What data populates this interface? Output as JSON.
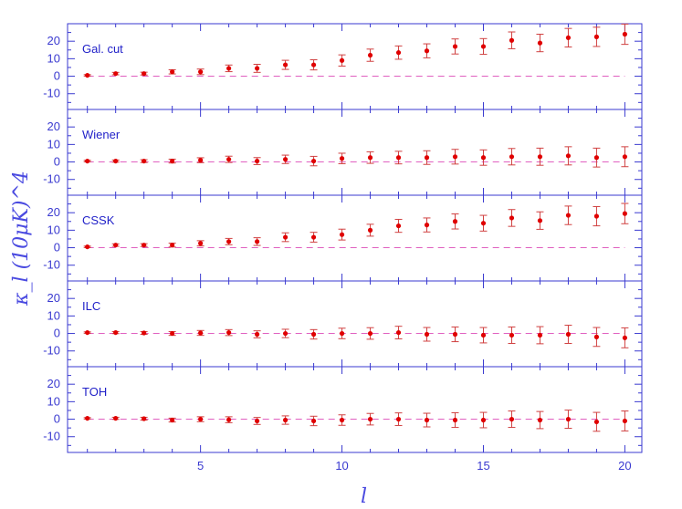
{
  "chart_data": {
    "type": "scatter",
    "xlabel": "l",
    "ylabel": "κ_l (10μK)^4",
    "xlim": [
      0.3,
      20.6
    ],
    "ylim": [
      -19,
      30
    ],
    "x_ticks": [
      5,
      10,
      15,
      20
    ],
    "y_ticks": [
      -10,
      0,
      10,
      20
    ],
    "colors": {
      "axis": "#3a3ad0",
      "points": "#e00000",
      "errorbars": "#d04040",
      "reference_line": "#e060c0"
    },
    "x": [
      1,
      2,
      3,
      4,
      5,
      6,
      7,
      8,
      9,
      10,
      11,
      12,
      13,
      14,
      15,
      16,
      17,
      18,
      19,
      20
    ],
    "panels": [
      {
        "label": "Gal. cut",
        "y": [
          0.5,
          1.5,
          1.5,
          2.5,
          2.5,
          4.5,
          4.5,
          6.5,
          6.5,
          9,
          12,
          13.5,
          14.5,
          17,
          17,
          20.5,
          19,
          22,
          22.5,
          24
        ],
        "err": [
          0.4,
          0.7,
          0.8,
          1.2,
          1.6,
          1.9,
          2.3,
          2.6,
          2.9,
          3.2,
          3.5,
          3.8,
          4.0,
          4.3,
          4.5,
          4.8,
          5.0,
          5.3,
          5.5,
          5.8
        ]
      },
      {
        "label": "Wiener",
        "y": [
          0.5,
          0.5,
          0.5,
          0.5,
          1,
          1.5,
          0.5,
          1.5,
          0.5,
          2,
          2.5,
          2.5,
          2.5,
          3,
          2.5,
          3,
          3,
          3.5,
          2.5,
          3
        ],
        "err": [
          0.4,
          0.6,
          0.8,
          1.1,
          1.4,
          1.8,
          2.0,
          2.4,
          2.7,
          3.0,
          3.3,
          3.6,
          3.9,
          4.2,
          4.4,
          4.7,
          4.9,
          5.2,
          5.4,
          5.7
        ]
      },
      {
        "label": "CSSK",
        "y": [
          0.5,
          1.5,
          1.5,
          1.5,
          2.5,
          3.5,
          3.5,
          6,
          6,
          7.5,
          10,
          12.5,
          13,
          15,
          14,
          17,
          15.5,
          18.5,
          18,
          19.5
        ],
        "err": [
          0.4,
          0.7,
          0.8,
          1.1,
          1.5,
          1.8,
          2.2,
          2.5,
          2.8,
          3.1,
          3.4,
          3.7,
          4.0,
          4.3,
          4.5,
          4.8,
          5.0,
          5.3,
          5.5,
          5.8
        ]
      },
      {
        "label": "ILC",
        "y": [
          0.5,
          0.5,
          0.3,
          0,
          0.3,
          0.5,
          -0.5,
          0,
          -0.5,
          0,
          0,
          0.5,
          -0.5,
          -0.5,
          -1,
          -1,
          -1,
          -0.5,
          -2,
          -2.5
        ],
        "err": [
          0.4,
          0.6,
          0.8,
          1.1,
          1.4,
          1.7,
          2.0,
          2.4,
          2.7,
          3.0,
          3.3,
          3.6,
          3.9,
          4.2,
          4.4,
          4.7,
          4.9,
          5.2,
          5.4,
          5.7
        ]
      },
      {
        "label": "TOH",
        "y": [
          0.5,
          0.5,
          0.3,
          -0.5,
          0,
          -0.3,
          -1,
          -0.5,
          -1,
          -0.5,
          0,
          0,
          -0.5,
          -0.5,
          -0.5,
          0,
          -0.5,
          0,
          -1.5,
          -1
        ],
        "err": [
          0.4,
          0.6,
          0.8,
          1.1,
          1.4,
          1.7,
          2.0,
          2.4,
          2.7,
          3.0,
          3.3,
          3.6,
          3.9,
          4.2,
          4.4,
          4.7,
          4.9,
          5.2,
          5.4,
          5.7
        ]
      }
    ]
  }
}
